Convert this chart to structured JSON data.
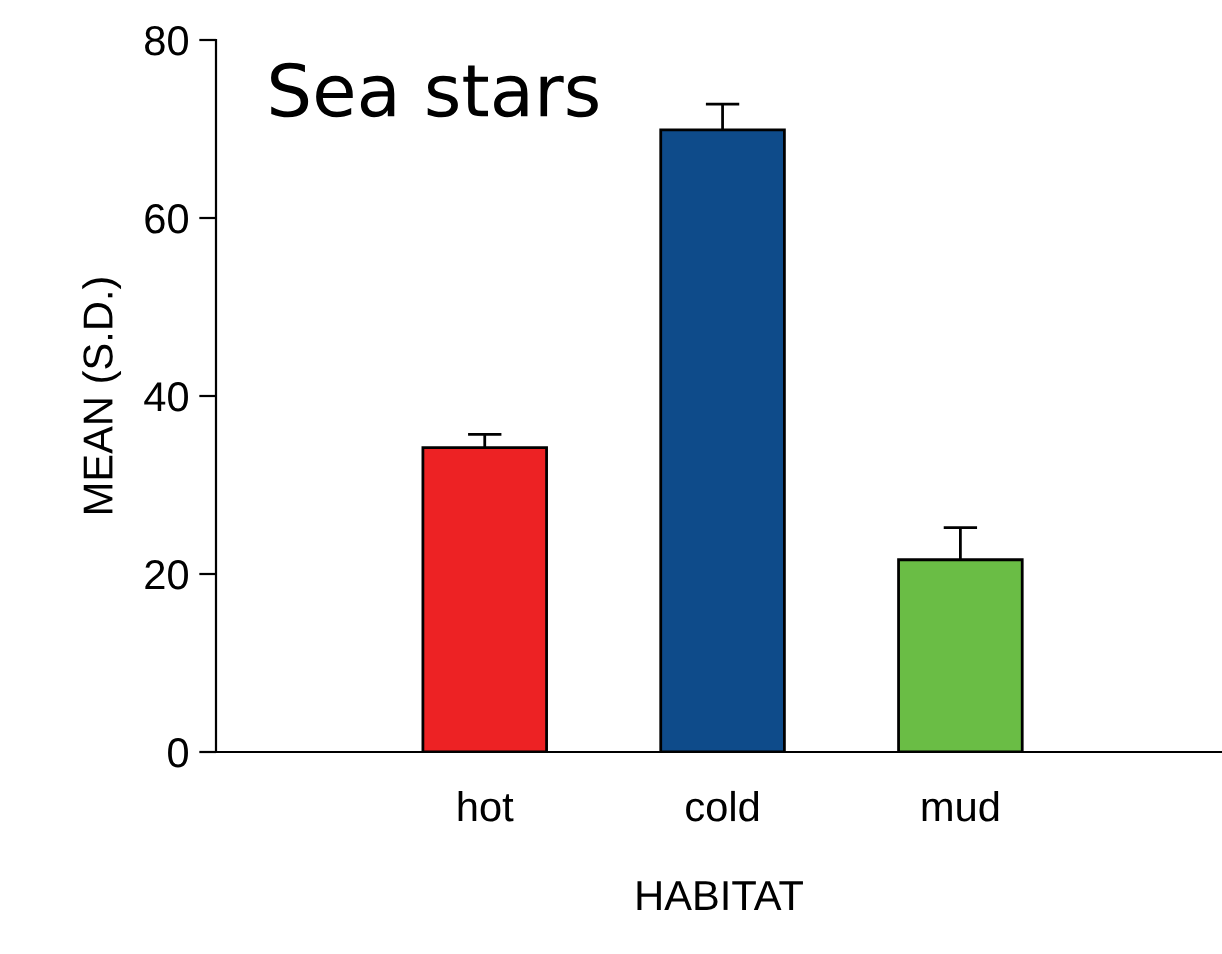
{
  "chart_data": {
    "type": "bar",
    "title": "Sea stars",
    "xlabel": "HABITAT",
    "ylabel": "MEAN (S.D.)",
    "categories": [
      "hot",
      "cold",
      "mud"
    ],
    "series": [
      {
        "colors": [
          "#ed2224",
          "#0e4b8a",
          "#6abd45"
        ],
        "values": [
          34.2,
          69.9,
          21.6
        ],
        "errors": [
          1.5,
          2.9,
          3.6
        ]
      }
    ],
    "ylim": [
      0,
      80
    ],
    "yticks": [
      0,
      20,
      40,
      60,
      80
    ],
    "grid": false,
    "legend": false
  }
}
